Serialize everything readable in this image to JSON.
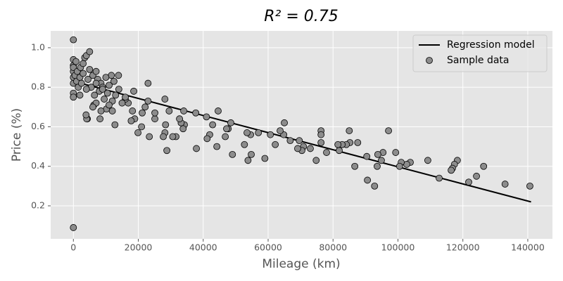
{
  "chart_data": {
    "type": "scatter",
    "title": "R² = 0.75",
    "x_label": "Mileage (km)",
    "y_label": "Price (%)",
    "xlim": [
      -7000,
      147600
    ],
    "ylim": [
      0.033,
      1.085
    ],
    "xticks": [
      0,
      20000,
      40000,
      60000,
      80000,
      100000,
      120000,
      140000
    ],
    "yticks": [
      0.2,
      0.4,
      0.6,
      0.8,
      {
        "value": 1,
        "label": "1.0"
      }
    ],
    "grid": true,
    "legend": "upper right",
    "series": [
      {
        "name": "Regression model",
        "type": "line",
        "color": "#000000",
        "x": [
          0,
          141000
        ],
        "values": [
          0.83,
          0.22
        ]
      },
      {
        "name": "Sample data",
        "type": "scatter",
        "color": "#8c8c8c",
        "x": [
          0,
          0,
          140650,
          133000,
          126400,
          124200,
          121800,
          118300,
          117400,
          116800,
          116400,
          112700,
          109200,
          103800,
          102700,
          101000,
          100500,
          99300,
          97100,
          95400,
          94900,
          93800,
          93600,
          92800,
          90600,
          90400,
          86700,
          87600,
          85000,
          85200,
          84100,
          82800,
          81900,
          81500,
          78000,
          76300,
          76300,
          76300,
          74800,
          73000,
          70900,
          70400,
          69600,
          69100,
          66800,
          65000,
          64800,
          63700,
          62200,
          60700,
          59000,
          57000,
          54800,
          54600,
          53800,
          53500,
          52700,
          49000,
          48500,
          47700,
          47200,
          46800,
          44600,
          44200,
          42900,
          42000,
          41200,
          41000,
          37900,
          37700,
          34200,
          33800,
          34000,
          33200,
          32700,
          31600,
          30600,
          29500,
          28800,
          28400,
          28200,
          27700,
          28200,
          25100,
          25100,
          23000,
          23400,
          23000,
          22100,
          21200,
          21000,
          19900,
          18900,
          18600,
          17800,
          18200,
          16900,
          16000,
          12800,
          13900,
          11700,
          10200,
          8200,
          6300,
          4300,
          4100,
          3900,
          0,
          0,
          0,
          0,
          0,
          0,
          0,
          0,
          500,
          800,
          1000,
          1200,
          1500,
          2000,
          2200,
          2500,
          3000,
          3000,
          3500,
          4000,
          4500,
          5000,
          5000,
          5500,
          6000,
          6500,
          7000,
          7000,
          7500,
          8000,
          8500,
          9000,
          9500,
          10000,
          10500,
          11000,
          12000,
          12500,
          13000,
          14000,
          15000,
          16000,
          6000,
          7000,
          8500,
          11000,
          4000,
          2000,
          9000,
          12000
        ],
        "values": [
          1.04,
          0.09,
          0.3,
          0.31,
          0.4,
          0.35,
          0.32,
          0.43,
          0.41,
          0.39,
          0.38,
          0.34,
          0.43,
          0.42,
          0.41,
          0.42,
          0.4,
          0.47,
          0.58,
          0.47,
          0.43,
          0.46,
          0.4,
          0.3,
          0.33,
          0.45,
          0.4,
          0.52,
          0.58,
          0.52,
          0.51,
          0.51,
          0.48,
          0.51,
          0.47,
          0.58,
          0.56,
          0.52,
          0.43,
          0.49,
          0.5,
          0.48,
          0.53,
          0.49,
          0.53,
          0.62,
          0.56,
          0.58,
          0.51,
          0.56,
          0.44,
          0.57,
          0.46,
          0.56,
          0.43,
          0.57,
          0.51,
          0.46,
          0.62,
          0.59,
          0.59,
          0.55,
          0.68,
          0.5,
          0.61,
          0.56,
          0.54,
          0.65,
          0.49,
          0.67,
          0.61,
          0.59,
          0.68,
          0.62,
          0.64,
          0.55,
          0.55,
          0.68,
          0.48,
          0.61,
          0.57,
          0.55,
          0.74,
          0.64,
          0.67,
          0.82,
          0.55,
          0.73,
          0.7,
          0.67,
          0.6,
          0.57,
          0.64,
          0.78,
          0.63,
          0.68,
          0.72,
          0.74,
          0.61,
          0.86,
          0.86,
          0.69,
          0.64,
          0.71,
          0.64,
          0.64,
          0.66,
          0.77,
          0.75,
          0.82,
          0.85,
          0.88,
          0.91,
          0.94,
          0.9,
          0.86,
          0.93,
          0.83,
          0.88,
          0.8,
          0.85,
          0.9,
          0.82,
          0.92,
          0.87,
          0.95,
          0.96,
          0.84,
          0.98,
          0.89,
          0.8,
          0.86,
          0.76,
          0.88,
          0.72,
          0.84,
          0.78,
          0.82,
          0.8,
          0.74,
          0.85,
          0.77,
          0.81,
          0.73,
          0.83,
          0.76,
          0.79,
          0.72,
          0.75,
          0.7,
          0.82,
          0.68,
          0.71,
          0.79,
          0.76,
          0.79,
          0.68
        ]
      }
    ]
  }
}
